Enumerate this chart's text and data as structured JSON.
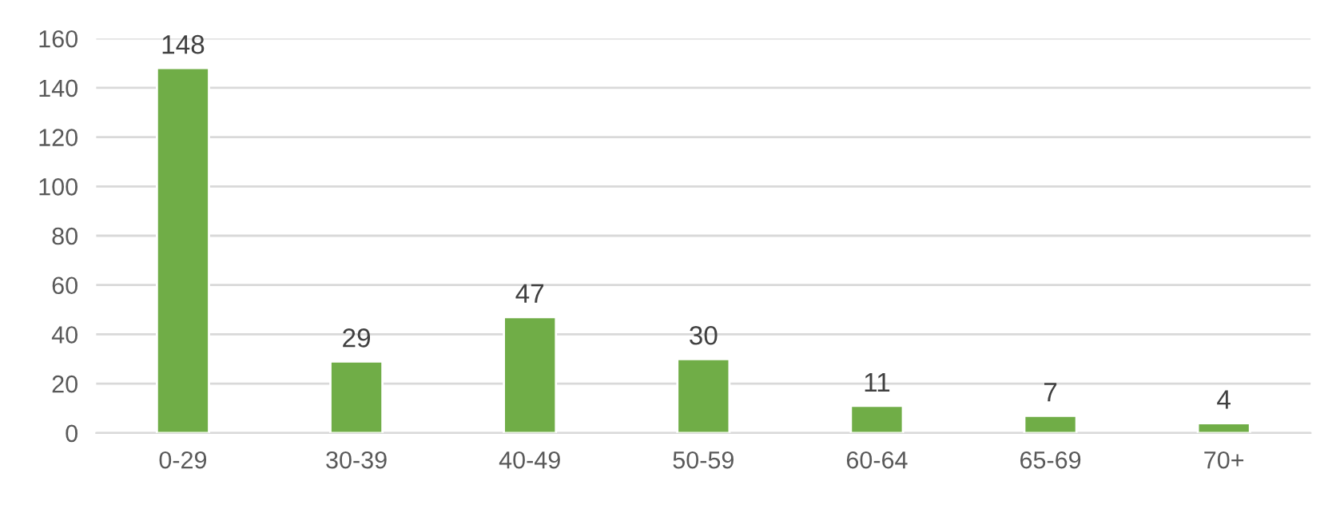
{
  "chart_data": {
    "type": "bar",
    "categories": [
      "0-29",
      "30-39",
      "40-49",
      "50-59",
      "60-64",
      "65-69",
      "70+"
    ],
    "values": [
      148,
      29,
      47,
      30,
      11,
      7,
      4
    ],
    "color": "#70ad47",
    "ylim": [
      0,
      160
    ],
    "yticks": [
      0,
      20,
      40,
      60,
      80,
      100,
      120,
      140,
      160
    ],
    "grid": "y",
    "data_labels": true
  }
}
